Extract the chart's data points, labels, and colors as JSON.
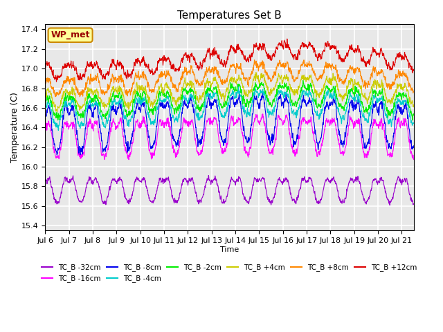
{
  "title": "Temperatures Set B",
  "xlabel": "Time",
  "ylabel": "Temperature (C)",
  "ylim": [
    15.35,
    17.45
  ],
  "background_color": "#e8e8e8",
  "plot_bg_color": "#e8e8e8",
  "grid_color": "white",
  "annotation_text": "WP_met",
  "annotation_bg": "#ffff99",
  "annotation_border": "#cc8800",
  "annotation_text_color": "#990000",
  "series": [
    {
      "label": "TC_B -32cm",
      "color": "#9900cc",
      "base": 15.78,
      "amp": 0.12,
      "noise_amp": 0.04,
      "trend_peak": 0.0,
      "trend_time": 8.0,
      "linewidth": 0.8
    },
    {
      "label": "TC_B -16cm",
      "color": "#ff00ff",
      "base": 16.3,
      "amp": 0.18,
      "noise_amp": 0.06,
      "trend_peak": 0.05,
      "trend_time": 9.0,
      "linewidth": 0.8
    },
    {
      "label": "TC_B -8cm",
      "color": "#0000ee",
      "base": 16.42,
      "amp": 0.22,
      "noise_amp": 0.07,
      "trend_peak": 0.1,
      "trend_time": 9.0,
      "linewidth": 0.8
    },
    {
      "label": "TC_B -4cm",
      "color": "#00cccc",
      "base": 16.55,
      "amp": 0.12,
      "noise_amp": 0.06,
      "trend_peak": 0.12,
      "trend_time": 9.5,
      "linewidth": 0.8
    },
    {
      "label": "TC_B -2cm",
      "color": "#00ee00",
      "base": 16.62,
      "amp": 0.1,
      "noise_amp": 0.06,
      "trend_peak": 0.13,
      "trend_time": 9.5,
      "linewidth": 0.8
    },
    {
      "label": "TC_B +4cm",
      "color": "#cccc00",
      "base": 16.7,
      "amp": 0.09,
      "noise_amp": 0.06,
      "trend_peak": 0.15,
      "trend_time": 10.0,
      "linewidth": 0.8
    },
    {
      "label": "TC_B +8cm",
      "color": "#ff8800",
      "base": 16.82,
      "amp": 0.08,
      "noise_amp": 0.06,
      "trend_peak": 0.17,
      "trend_time": 10.0,
      "linewidth": 0.8
    },
    {
      "label": "TC_B +12cm",
      "color": "#dd0000",
      "base": 16.98,
      "amp": 0.07,
      "noise_amp": 0.06,
      "trend_peak": 0.22,
      "trend_time": 10.5,
      "linewidth": 0.8
    }
  ],
  "xtick_labels": [
    "Jul 6",
    "Jul 7",
    "Jul 8",
    "Jul 9",
    "Jul 10",
    "Jul 11",
    "Jul 12",
    "Jul 13",
    "Jul 14",
    "Jul 15",
    "Jul 16",
    "Jul 17",
    "Jul 18",
    "Jul 19",
    "Jul 20",
    "Jul 21"
  ],
  "xtick_positions": [
    0,
    1,
    2,
    3,
    4,
    5,
    6,
    7,
    8,
    9,
    10,
    11,
    12,
    13,
    14,
    15
  ]
}
